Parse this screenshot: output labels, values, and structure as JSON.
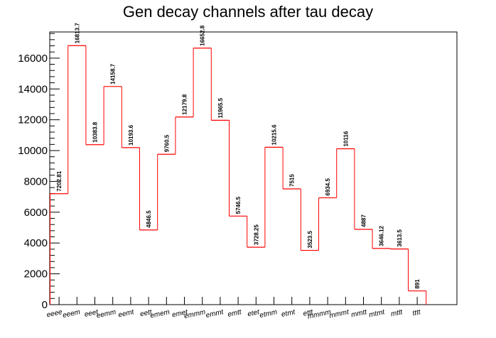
{
  "chart_data": {
    "type": "bar",
    "style": "step-histogram",
    "title": "Gen decay channels after tau decay",
    "xlabel": "",
    "ylabel": "",
    "categories": [
      "eeee",
      "eeem",
      "eeet",
      "eemm",
      "eemt",
      "eett",
      "emem",
      "emet",
      "emmm",
      "emmt",
      "emtt",
      "etet",
      "etmm",
      "etmt",
      "ettt",
      "mmmm",
      "mmmt",
      "mmtt",
      "mtmt",
      "mttt",
      "tttt"
    ],
    "values": [
      7202.81,
      16813.7,
      10383.8,
      14158.7,
      10193.6,
      4846.5,
      9760.5,
      12179.8,
      16652.8,
      11965.5,
      5746.5,
      3728.25,
      10215.6,
      7515,
      3523.5,
      6934.5,
      10116,
      4887,
      3646.12,
      3613.5,
      891
    ],
    "data_labels": [
      "7202.81",
      "16813.7",
      "10383.8",
      "14158.7",
      "10193.6",
      "4846.5",
      "9760.5",
      "12179.8",
      "16652.8",
      "11965.5",
      "5746.5",
      "3728.25",
      "10215.6",
      "7515",
      "3523.5",
      "6934.5",
      "10116",
      "4887",
      "3646.12",
      "3613.5",
      "891"
    ],
    "yticks": [
      0,
      2000,
      4000,
      6000,
      8000,
      10000,
      12000,
      14000,
      16000
    ],
    "ytick_labels": [
      "0",
      "2000",
      "4000",
      "6000",
      "8000",
      "10000",
      "12000",
      "14000",
      "16000"
    ],
    "ylim": [
      0,
      17700
    ],
    "grid": false,
    "legend": "none",
    "line_color": "#ff0000"
  }
}
